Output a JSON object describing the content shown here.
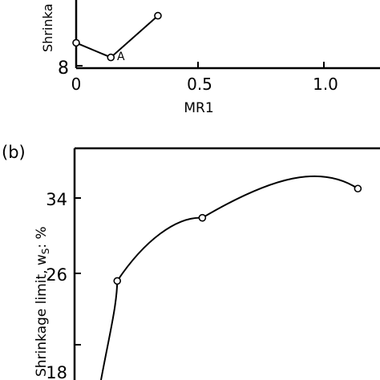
{
  "chart_data": [
    {
      "panel_label": "",
      "type": "line",
      "xlabel": "MR1",
      "ylabel": "Shrinkа",
      "x_ticks": [
        "0",
        "0.5",
        "1.0"
      ],
      "y_ticks": [
        "8"
      ],
      "xlim": [
        0,
        1.2
      ],
      "ylim": [
        8,
        10
      ],
      "grid": false,
      "points": [
        {
          "x": 0.0,
          "y": 9.1,
          "label": ""
        },
        {
          "x": 0.14,
          "y": 8.4,
          "label": "A"
        },
        {
          "x": 0.33,
          "y": 10.4,
          "label": ""
        }
      ]
    },
    {
      "panel_label": "(b)",
      "type": "line",
      "xlabel": "",
      "ylabel": "Shrinkage limit, w",
      "ylabel_sub": "S",
      "ylabel_unit": ": %",
      "y_ticks": [
        "18",
        "26",
        "34"
      ],
      "ylim": [
        18,
        36
      ],
      "grid": false,
      "points": [
        {
          "x": 0.14,
          "y": 25.2
        },
        {
          "x": 0.43,
          "y": 31.9
        },
        {
          "x": 0.96,
          "y": 35.0
        }
      ]
    }
  ]
}
